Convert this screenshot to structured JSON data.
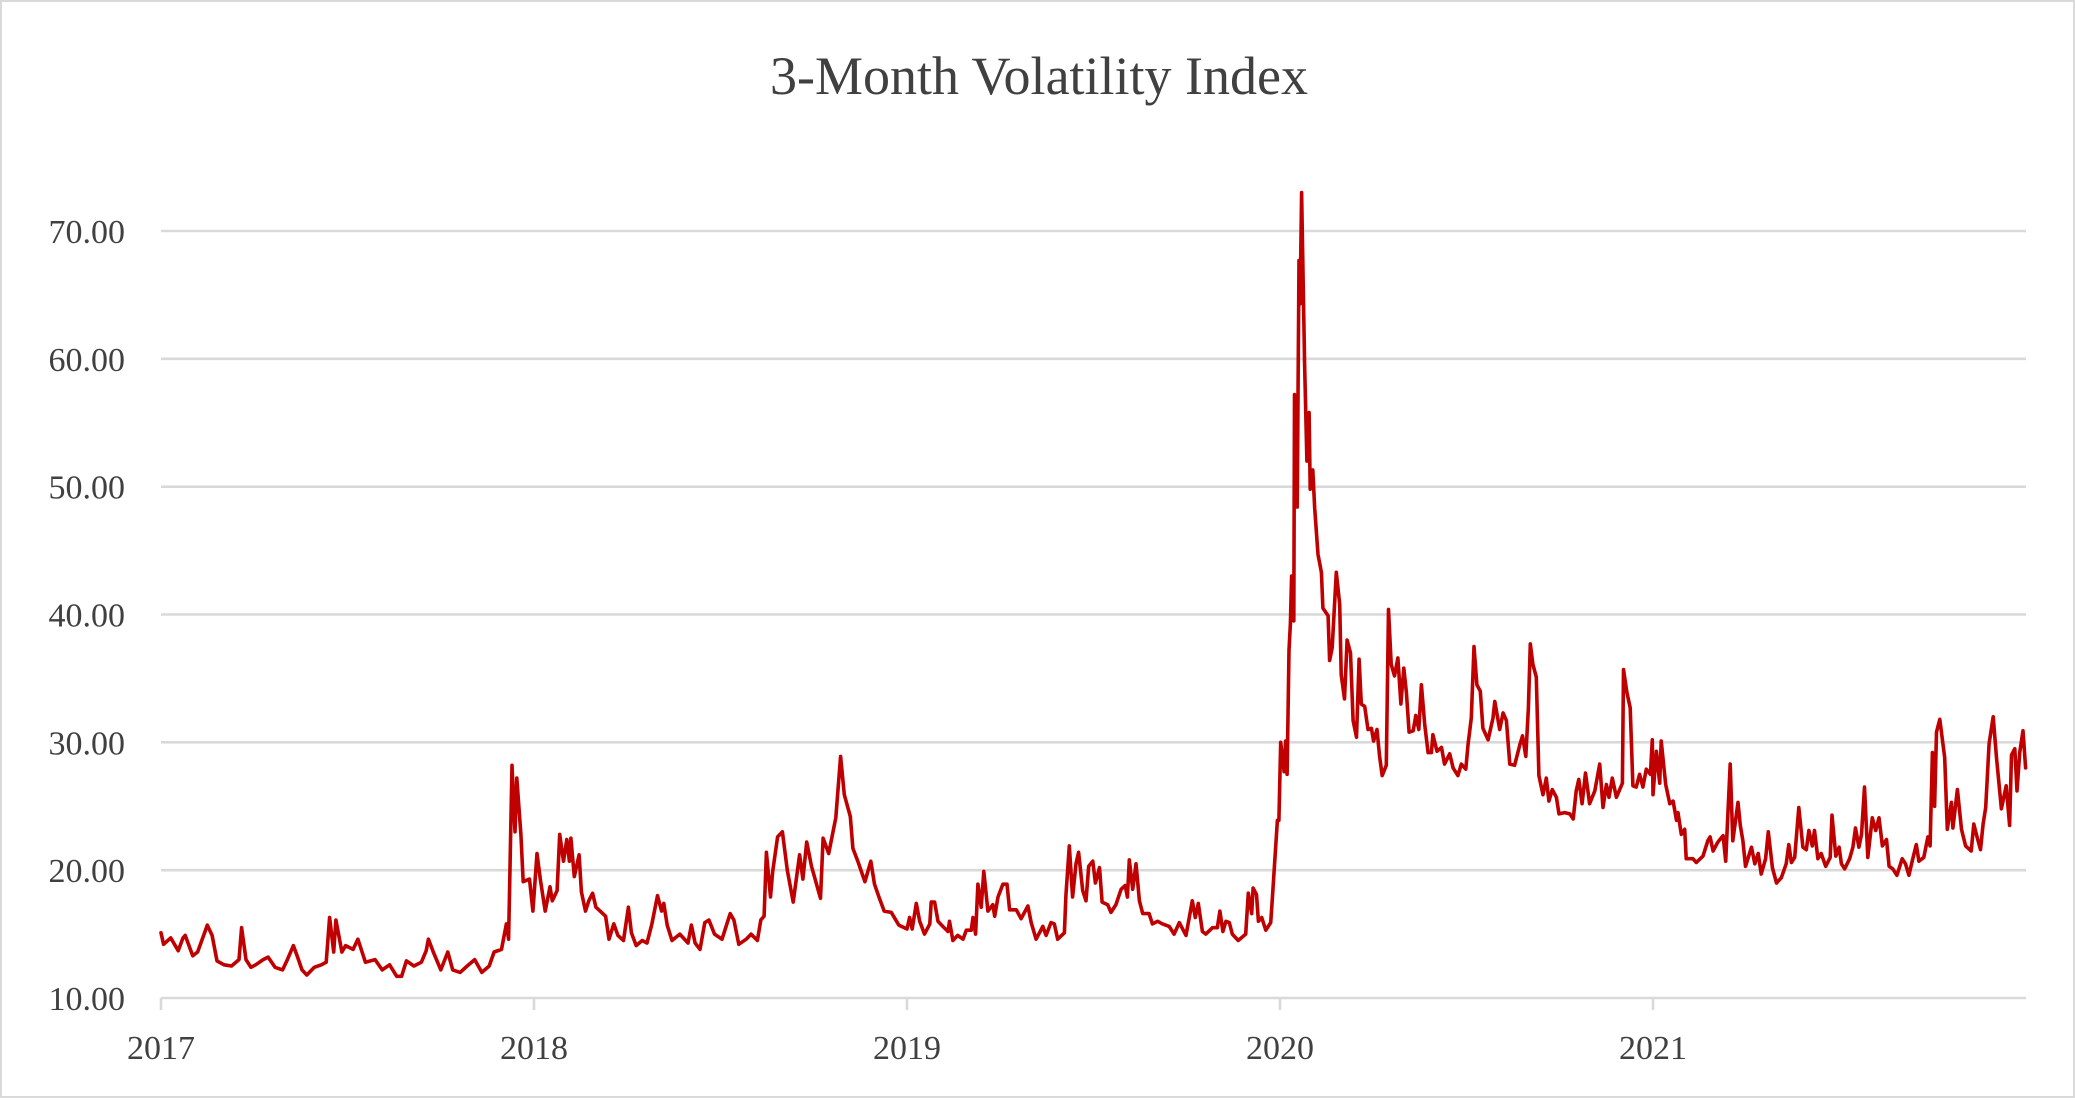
{
  "chart_data": {
    "type": "line",
    "title": "3-Month Volatility Index",
    "xlabel": "",
    "ylabel": "",
    "xlim": [
      2017,
      2022
    ],
    "ylim": [
      10,
      75
    ],
    "x_ticks": [
      2017,
      2018,
      2019,
      2020,
      2021
    ],
    "x_tick_labels": [
      "2017",
      "2018",
      "2019",
      "2020",
      "2021"
    ],
    "y_ticks": [
      10,
      20,
      30,
      40,
      50,
      60,
      70
    ],
    "y_tick_labels": [
      "10.00",
      "20.00",
      "30.00",
      "40.00",
      "50.00",
      "60.00",
      "70.00"
    ],
    "grid": "horizontal",
    "legend": "none",
    "series_color": "#C00000",
    "series": [
      {
        "x": [
          2017.0,
          2017.007,
          2017.026,
          2017.046,
          2017.059,
          2017.065,
          2017.085,
          2017.098,
          2017.117,
          2017.124,
          2017.137,
          2017.15,
          2017.169,
          2017.189,
          2017.209,
          2017.216,
          2017.228,
          2017.241,
          2017.254,
          2017.274,
          2017.287,
          2017.306,
          2017.326,
          2017.339,
          2017.355,
          2017.365,
          2017.378,
          2017.391,
          2017.411,
          2017.43,
          2017.443,
          2017.452,
          2017.463,
          2017.469,
          2017.485,
          2017.495,
          2017.515,
          2017.528,
          2017.548,
          2017.574,
          2017.593,
          2017.613,
          2017.632,
          2017.645,
          2017.658,
          2017.678,
          2017.698,
          2017.711,
          2017.717,
          2017.73,
          2017.75,
          2017.769,
          2017.782,
          2017.802,
          2017.821,
          2017.841,
          2017.86,
          2017.88,
          2017.893,
          2017.913,
          2017.926,
          2017.932,
          2017.941,
          2017.949,
          2017.954,
          2017.965,
          2017.971,
          2017.988,
          2017.997,
          2018.008,
          2018.017,
          2018.03,
          2018.043,
          2018.049,
          2018.062,
          2018.069,
          2018.079,
          2018.088,
          2018.095,
          2018.099,
          2018.108,
          2018.121,
          2018.127,
          2018.138,
          2018.147,
          2018.157,
          2018.166,
          2018.192,
          2018.201,
          2018.214,
          2018.225,
          2018.24,
          2018.253,
          2018.261,
          2018.274,
          2018.29,
          2018.303,
          2018.316,
          2018.331,
          2018.342,
          2018.348,
          2018.357,
          2018.37,
          2018.391,
          2018.413,
          2018.422,
          2018.432,
          2018.445,
          2018.458,
          2018.469,
          2018.484,
          2018.504,
          2018.526,
          2018.536,
          2018.549,
          2018.569,
          2018.582,
          2018.599,
          2018.608,
          2018.617,
          2018.623,
          2018.634,
          2018.64,
          2018.653,
          2018.666,
          2018.679,
          2018.695,
          2018.712,
          2018.721,
          2018.731,
          2018.744,
          2018.768,
          2018.775,
          2018.79,
          2018.809,
          2018.822,
          2018.832,
          2018.848,
          2018.855,
          2018.868,
          2018.887,
          2018.903,
          2018.913,
          2018.926,
          2018.939,
          2018.958,
          2018.978,
          2019.0,
          2019.007,
          2019.014,
          2019.025,
          2019.034,
          2019.047,
          2019.061,
          2019.065,
          2019.074,
          2019.083,
          2019.096,
          2019.11,
          2019.114,
          2019.123,
          2019.136,
          2019.15,
          2019.159,
          2019.172,
          2019.177,
          2019.184,
          2019.19,
          2019.199,
          2019.206,
          2019.217,
          2019.23,
          2019.235,
          2019.244,
          2019.257,
          2019.268,
          2019.275,
          2019.293,
          2019.306,
          2019.315,
          2019.324,
          2019.333,
          2019.346,
          2019.364,
          2019.373,
          2019.386,
          2019.395,
          2019.404,
          2019.422,
          2019.426,
          2019.435,
          2019.444,
          2019.453,
          2019.46,
          2019.471,
          2019.48,
          2019.487,
          2019.498,
          2019.505,
          2019.516,
          2019.523,
          2019.538,
          2019.547,
          2019.56,
          2019.574,
          2019.585,
          2019.591,
          2019.596,
          2019.605,
          2019.614,
          2019.623,
          2019.632,
          2019.649,
          2019.658,
          2019.672,
          2019.685,
          2019.703,
          2019.716,
          2019.73,
          2019.748,
          2019.765,
          2019.773,
          2019.781,
          2019.792,
          2019.801,
          2019.819,
          2019.832,
          2019.839,
          2019.847,
          2019.855,
          2019.864,
          2019.872,
          2019.888,
          2019.908,
          2019.915,
          2019.924,
          2019.928,
          2019.937,
          2019.942,
          2019.951,
          2019.962,
          2019.975,
          2019.979,
          2019.993,
          2019.997,
          2020.002,
          2020.011,
          2020.015,
          2020.019,
          2020.024,
          2020.028,
          2020.031,
          2020.037,
          2020.039,
          2020.046,
          2020.051,
          2020.054,
          2020.058,
          2020.066,
          2020.072,
          2020.078,
          2020.081,
          2020.088,
          2020.093,
          2020.102,
          2020.111,
          2020.115,
          2020.129,
          2020.133,
          2020.14,
          2020.151,
          2020.16,
          2020.164,
          2020.173,
          2020.18,
          2020.189,
          2020.196,
          2020.205,
          2020.212,
          2020.218,
          2020.227,
          2020.236,
          2020.245,
          2020.251,
          2020.26,
          2020.267,
          2020.274,
          2020.285,
          2020.291,
          2020.298,
          2020.307,
          2020.316,
          2020.324,
          2020.332,
          2020.339,
          2020.346,
          2020.357,
          2020.364,
          2020.372,
          2020.379,
          2020.388,
          2020.397,
          2020.406,
          2020.41,
          2020.421,
          2020.433,
          2020.441,
          2020.455,
          2020.464,
          2020.477,
          2020.486,
          2020.498,
          2020.504,
          2020.513,
          2020.52,
          2020.528,
          2020.537,
          2020.544,
          2020.558,
          2020.571,
          2020.576,
          2020.589,
          2020.598,
          2020.607,
          2020.616,
          2020.629,
          2020.643,
          2020.65,
          2020.659,
          2020.666,
          2020.671,
          2020.678,
          2020.687,
          2020.694,
          2020.705,
          2020.714,
          2020.721,
          2020.73,
          2020.741,
          2020.748,
          2020.763,
          2020.777,
          2020.786,
          2020.794,
          2020.801,
          2020.81,
          2020.819,
          2020.83,
          2020.844,
          2020.857,
          2020.866,
          2020.875,
          2020.882,
          2020.891,
          2020.902,
          2020.918,
          2020.921,
          2020.93,
          2020.939,
          2020.946,
          2020.955,
          2020.964,
          2020.973,
          2020.982,
          2020.993,
          2020.998,
          2021.0,
          2021.009,
          2021.018,
          2021.022,
          2021.034,
          2021.045,
          2021.054,
          2021.063,
          2021.067,
          2021.076,
          2021.085,
          2021.089,
          2021.107,
          2021.116,
          2021.134,
          2021.147,
          2021.153,
          2021.161,
          2021.174,
          2021.188,
          2021.195,
          2021.207,
          2021.214,
          2021.228,
          2021.234,
          2021.241,
          2021.248,
          2021.264,
          2021.273,
          2021.282,
          2021.29,
          2021.302,
          2021.309,
          2021.32,
          2021.331,
          2021.344,
          2021.357,
          2021.364,
          2021.371,
          2021.38,
          2021.391,
          2021.402,
          2021.411,
          2021.418,
          2021.427,
          2021.433,
          2021.442,
          2021.451,
          2021.463,
          2021.475,
          2021.48,
          2021.49,
          2021.499,
          2021.505,
          2021.514,
          2021.527,
          2021.536,
          2021.543,
          2021.552,
          2021.559,
          2021.567,
          2021.576,
          2021.588,
          2021.597,
          2021.606,
          2021.615,
          2021.626,
          2021.633,
          2021.643,
          2021.654,
          2021.668,
          2021.677,
          2021.686,
          2021.695,
          2021.706,
          2021.713,
          2021.726,
          2021.737,
          2021.743,
          2021.749,
          2021.755,
          2021.76,
          2021.769,
          2021.782,
          2021.789,
          2021.8,
          2021.804,
          2021.816,
          2021.827,
          2021.838,
          2021.853,
          2021.86,
          2021.867,
          2021.878,
          2021.885,
          2021.892,
          2021.901,
          2021.912,
          2021.921,
          2021.934,
          2021.947,
          2021.956,
          2021.961,
          2021.97,
          2021.976,
          2021.983,
          2021.992,
          2021.999
        ],
        "y": [
          15.1,
          14.2,
          14.7,
          13.7,
          14.7,
          14.9,
          13.3,
          13.6,
          15.1,
          15.7,
          14.9,
          12.9,
          12.6,
          12.5,
          13.0,
          15.5,
          13.0,
          12.4,
          12.6,
          13.0,
          13.2,
          12.4,
          12.2,
          13.0,
          14.1,
          13.3,
          12.2,
          11.8,
          12.4,
          12.6,
          12.8,
          16.3,
          13.6,
          16.1,
          13.6,
          14.1,
          13.8,
          14.6,
          12.8,
          13.0,
          12.2,
          12.6,
          11.7,
          11.7,
          12.9,
          12.5,
          12.8,
          13.7,
          14.6,
          13.6,
          12.2,
          13.6,
          12.2,
          12.0,
          12.5,
          13.0,
          12.0,
          12.5,
          13.6,
          13.8,
          15.8,
          14.6,
          28.2,
          23.0,
          27.2,
          22.8,
          19.1,
          19.3,
          16.8,
          21.3,
          19.3,
          16.8,
          18.7,
          17.6,
          18.4,
          22.8,
          20.7,
          22.4,
          20.7,
          22.5,
          19.5,
          21.2,
          18.3,
          16.8,
          17.6,
          18.2,
          17.1,
          16.4,
          14.6,
          15.8,
          14.9,
          14.5,
          17.1,
          15.1,
          14.1,
          14.5,
          14.3,
          15.8,
          18.0,
          16.8,
          17.4,
          15.7,
          14.5,
          15.0,
          14.3,
          15.7,
          14.3,
          13.8,
          15.9,
          16.1,
          15.0,
          14.6,
          16.6,
          16.1,
          14.2,
          14.6,
          15.0,
          14.5,
          16.1,
          16.4,
          21.4,
          17.9,
          19.9,
          22.6,
          23.0,
          20.0,
          17.5,
          21.2,
          19.3,
          22.2,
          20.3,
          17.8,
          22.5,
          21.3,
          24.1,
          28.9,
          25.9,
          24.2,
          21.7,
          20.7,
          19.1,
          20.7,
          18.9,
          17.8,
          16.8,
          16.7,
          15.7,
          15.4,
          16.3,
          15.4,
          17.4,
          16.0,
          15.0,
          15.8,
          17.5,
          17.5,
          16.0,
          15.6,
          15.2,
          16.0,
          14.5,
          14.9,
          14.6,
          15.3,
          15.3,
          16.3,
          15.0,
          18.9,
          17.1,
          19.9,
          16.8,
          17.3,
          16.4,
          17.9,
          18.9,
          18.9,
          16.9,
          16.9,
          16.2,
          16.7,
          17.2,
          15.9,
          14.6,
          15.6,
          14.9,
          15.9,
          15.8,
          14.6,
          15.1,
          18.0,
          21.9,
          17.9,
          20.5,
          21.4,
          18.4,
          17.6,
          20.3,
          20.7,
          19.0,
          20.2,
          17.5,
          17.3,
          16.7,
          17.3,
          18.5,
          18.8,
          17.9,
          20.8,
          18.5,
          20.5,
          17.6,
          16.6,
          16.6,
          15.8,
          16.0,
          15.8,
          15.6,
          15.0,
          15.9,
          14.9,
          17.6,
          16.3,
          17.4,
          15.2,
          15.0,
          15.5,
          15.5,
          16.8,
          15.2,
          16.0,
          15.9,
          15.0,
          14.5,
          15.0,
          18.2,
          16.6,
          18.6,
          18.1,
          16.0,
          16.3,
          15.3,
          15.9,
          17.6,
          23.9,
          23.9,
          30.0,
          27.7,
          30.1,
          27.5,
          37.2,
          39.3,
          43.0,
          39.5,
          57.2,
          48.4,
          67.7,
          64.3,
          73.0,
          59.6,
          52.0,
          55.8,
          49.8,
          51.3,
          48.3,
          44.7,
          43.3,
          40.5,
          39.9,
          36.4,
          37.4,
          43.3,
          40.8,
          35.3,
          33.4,
          38.0,
          37.0,
          31.7,
          30.4,
          36.5,
          33.0,
          32.8,
          31.0,
          31.1,
          30.1,
          31.0,
          28.9,
          27.4,
          28.2,
          40.4,
          36.1,
          35.2,
          36.6,
          33.0,
          35.8,
          33.9,
          30.8,
          30.9,
          32.1,
          31.0,
          34.5,
          31.4,
          29.2,
          29.2,
          30.6,
          29.3,
          29.6,
          28.3,
          29.1,
          28.0,
          27.4,
          28.3,
          27.9,
          29.8,
          31.9,
          37.5,
          34.5,
          34.0,
          31.1,
          30.2,
          31.9,
          33.2,
          31.0,
          32.3,
          31.7,
          28.3,
          28.2,
          29.8,
          30.5,
          28.9,
          32.7,
          37.7,
          36.1,
          35.1,
          27.4,
          25.9,
          27.2,
          25.4,
          26.3,
          25.7,
          24.4,
          24.5,
          24.4,
          24.0,
          26.2,
          27.1,
          25.2,
          27.6,
          25.2,
          26.2,
          28.3,
          24.9,
          26.7,
          25.7,
          27.2,
          25.7,
          26.8,
          35.7,
          33.9,
          32.7,
          26.6,
          26.5,
          27.5,
          26.5,
          27.9,
          27.5,
          30.2,
          25.9,
          29.3,
          26.8,
          30.1,
          26.7,
          25.2,
          25.4,
          23.9,
          24.5,
          22.8,
          23.2,
          20.9,
          20.9,
          20.6,
          21.1,
          22.3,
          22.6,
          21.5,
          22.2,
          22.7,
          20.7,
          28.3,
          22.3,
          25.3,
          23.5,
          22.3,
          20.3,
          21.8,
          20.5,
          21.3,
          19.7,
          20.9,
          23.0,
          20.2,
          19.0,
          19.4,
          20.5,
          22.0,
          20.6,
          21.0,
          24.9,
          21.8,
          21.6,
          23.1,
          21.9,
          23.1,
          20.9,
          21.3,
          20.3,
          21.0,
          24.3,
          21.1,
          21.8,
          20.5,
          20.1,
          20.9,
          21.8,
          23.3,
          21.8,
          22.8,
          26.5,
          21.0,
          24.1,
          23.1,
          24.1,
          21.9,
          22.4,
          20.3,
          20.1,
          19.6,
          20.9,
          20.5,
          19.6,
          20.7,
          22.0,
          20.7,
          21.0,
          22.6,
          21.9,
          29.2,
          25.0,
          30.8,
          31.8,
          28.8,
          23.2,
          25.3,
          23.3,
          26.3,
          23.2,
          21.9,
          21.5,
          23.6,
          22.8,
          21.6,
          23.6,
          24.9,
          29.9,
          32.0,
          28.8,
          24.8,
          26.6,
          23.5,
          29.0,
          29.5,
          26.2,
          29.2,
          30.9,
          28.0
        ]
      }
    ]
  }
}
